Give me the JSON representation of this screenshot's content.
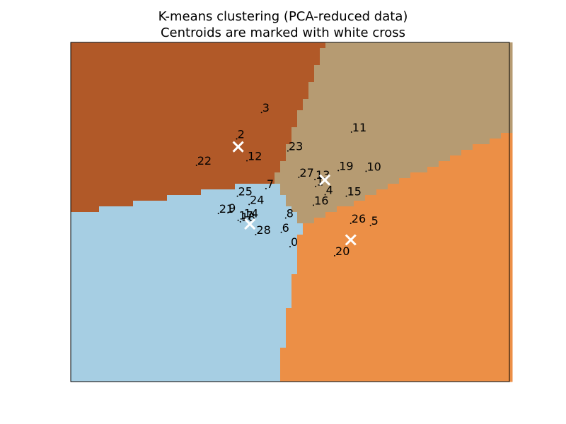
{
  "chart_data": {
    "type": "scatter",
    "title": [
      "K-means clustering (PCA-reduced data)",
      "Centroids are marked with white cross"
    ],
    "xlabel": "",
    "ylabel": "",
    "xlim": [
      -6.0,
      6.0
    ],
    "ylim": [
      -4.3,
      4.7
    ],
    "ticks": "hidden",
    "grid": false,
    "legend": "none",
    "region_colors": {
      "top_left": "#b15928",
      "top_right": "#b69b72",
      "bottom_left": "#a6cee3",
      "bottom_right": "#ec8f46"
    },
    "regions": [
      {
        "name": "top_left",
        "color": "#b15928"
      },
      {
        "name": "top_right",
        "color": "#b69b72"
      },
      {
        "name": "bottom_left",
        "color": "#a6cee3"
      },
      {
        "name": "bottom_right",
        "color": "#ec8f46"
      }
    ],
    "centroids": [
      {
        "x": -1.42,
        "y": 1.93
      },
      {
        "x": 0.95,
        "y": 1.05
      },
      {
        "x": -1.1,
        "y": -0.12
      },
      {
        "x": 1.66,
        "y": -0.54
      }
    ],
    "centroid_marker": {
      "shape": "x",
      "color": "#ffffff"
    },
    "points": [
      {
        "label": "0",
        "x": 0.0,
        "y": -0.72
      },
      {
        "label": "1",
        "x": 0.7,
        "y": 0.88
      },
      {
        "label": "2",
        "x": -1.46,
        "y": 2.14
      },
      {
        "label": "3",
        "x": -0.78,
        "y": 2.84
      },
      {
        "label": "4",
        "x": 0.96,
        "y": 0.66
      },
      {
        "label": "5",
        "x": 2.2,
        "y": -0.16
      },
      {
        "label": "6",
        "x": -0.24,
        "y": -0.34
      },
      {
        "label": "7",
        "x": -0.66,
        "y": 0.82
      },
      {
        "label": "8",
        "x": -0.12,
        "y": 0.04
      },
      {
        "label": "9",
        "x": -1.7,
        "y": 0.18
      },
      {
        "label": "10",
        "x": 2.08,
        "y": 1.28
      },
      {
        "label": "11",
        "x": 1.68,
        "y": 2.32
      },
      {
        "label": "12",
        "x": -1.18,
        "y": 1.56
      },
      {
        "label": "13",
        "x": 0.68,
        "y": 1.06
      },
      {
        "label": "14",
        "x": -1.28,
        "y": 0.04
      },
      {
        "label": "15",
        "x": 1.54,
        "y": 0.62
      },
      {
        "label": "16",
        "x": 0.64,
        "y": 0.38
      },
      {
        "label": "17",
        "x": -1.42,
        "y": -0.02
      },
      {
        "label": "18",
        "x": -1.36,
        "y": -0.06
      },
      {
        "label": "19",
        "x": 1.32,
        "y": 1.3
      },
      {
        "label": "20",
        "x": 1.22,
        "y": -0.96
      },
      {
        "label": "21",
        "x": -1.96,
        "y": 0.16
      },
      {
        "label": "22",
        "x": -2.56,
        "y": 1.44
      },
      {
        "label": "23",
        "x": -0.06,
        "y": 1.82
      },
      {
        "label": "24",
        "x": -1.12,
        "y": 0.4
      },
      {
        "label": "25",
        "x": -1.44,
        "y": 0.62
      },
      {
        "label": "26",
        "x": 1.66,
        "y": -0.1
      },
      {
        "label": "27",
        "x": 0.24,
        "y": 1.12
      },
      {
        "label": "28",
        "x": -0.94,
        "y": -0.4
      }
    ]
  }
}
